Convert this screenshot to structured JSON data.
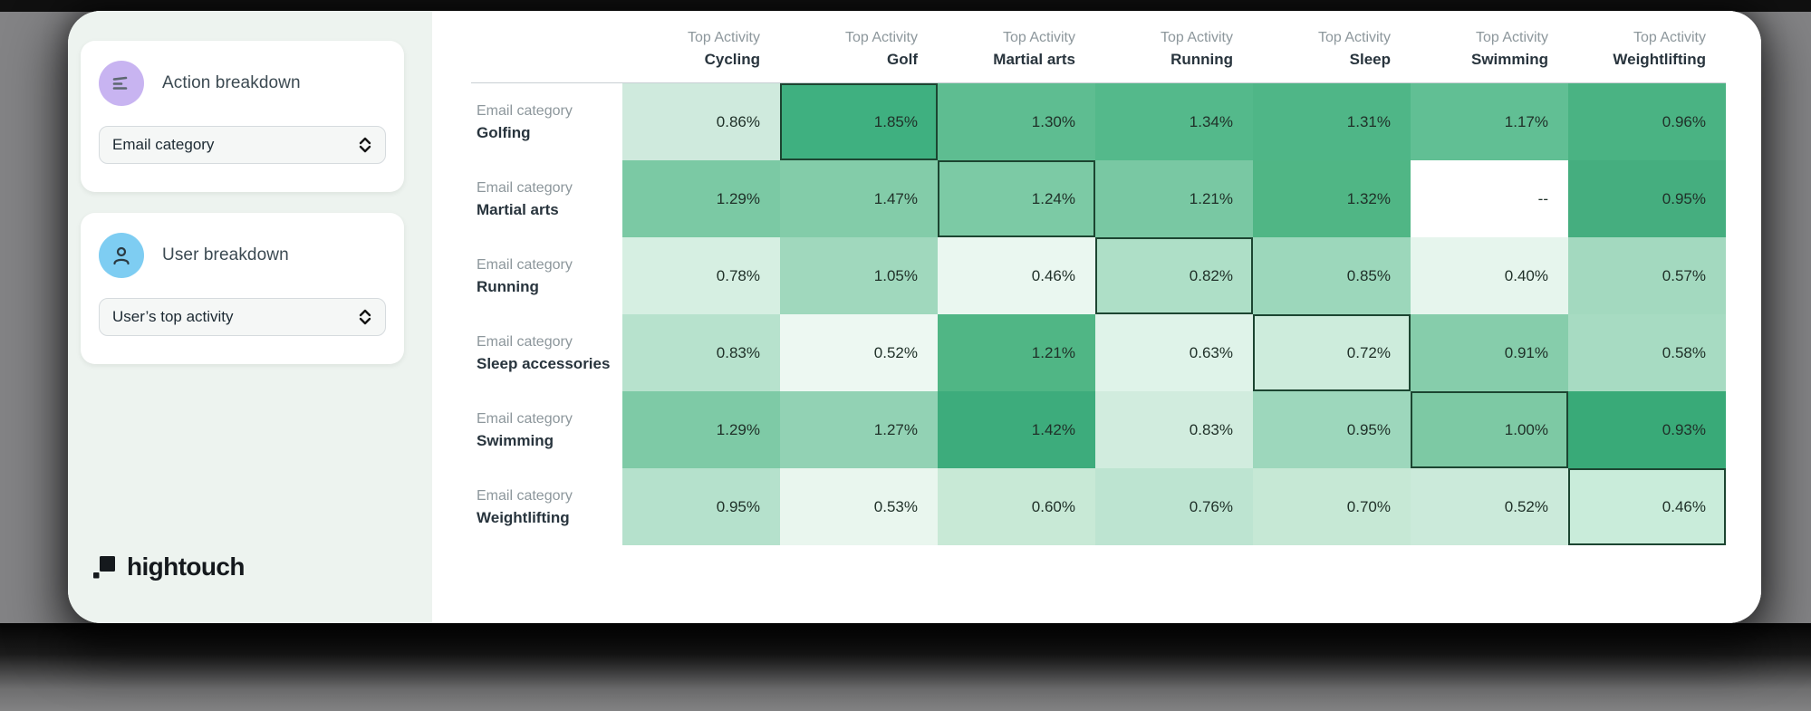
{
  "sidebar": {
    "action_card": {
      "title": "Action breakdown",
      "dropdown_value": "Email category"
    },
    "user_card": {
      "title": "User breakdown",
      "dropdown_value": "User’s top activity"
    },
    "logo_text": "hightouch"
  },
  "chart_data": {
    "type": "heatmap",
    "column_header_label": "Top Activity",
    "row_header_label": "Email category",
    "columns": [
      "Cycling",
      "Golf",
      "Martial arts",
      "Running",
      "Sleep",
      "Swimming",
      "Weightlifting"
    ],
    "rows": [
      "Golfing",
      "Martial arts",
      "Running",
      "Sleep accessories",
      "Swimming",
      "Weightlifting"
    ],
    "values_pct": [
      [
        0.86,
        1.85,
        1.3,
        1.34,
        1.31,
        1.17,
        0.96
      ],
      [
        1.29,
        1.47,
        1.24,
        1.21,
        1.32,
        null,
        0.95
      ],
      [
        0.78,
        1.05,
        0.46,
        0.82,
        0.85,
        0.4,
        0.57
      ],
      [
        0.83,
        0.52,
        1.21,
        0.63,
        0.72,
        0.91,
        0.58
      ],
      [
        1.29,
        1.27,
        1.42,
        0.83,
        0.95,
        1.0,
        0.93
      ],
      [
        0.95,
        0.53,
        0.6,
        0.76,
        0.7,
        0.52,
        0.46
      ]
    ],
    "missing_display": "--",
    "highlighted_cells": [
      [
        0,
        1
      ],
      [
        1,
        2
      ],
      [
        2,
        3
      ],
      [
        3,
        4
      ],
      [
        4,
        5
      ],
      [
        5,
        6
      ]
    ],
    "cell_colors": [
      [
        "#cfeadd",
        "#3fb080",
        "#5ebd91",
        "#54b98b",
        "#4fb687",
        "#61bf94",
        "#4ab383"
      ],
      [
        "#7bc9a4",
        "#83cca9",
        "#7ccaa5",
        "#79c8a3",
        "#50b685",
        "#ffffff",
        "#45ae7f"
      ],
      [
        "#d6efe2",
        "#a0d8bd",
        "#eaf7f0",
        "#aedfc7",
        "#9cd7bb",
        "#e6f5ed",
        "#a3d9bf"
      ],
      [
        "#b7e2cd",
        "#edf8f2",
        "#50b685",
        "#dff3e9",
        "#cdecdc",
        "#86cdab",
        "#a7dbc2"
      ],
      [
        "#7ecaa6",
        "#92d2b4",
        "#3dac7c",
        "#d1ecde",
        "#9dd7bc",
        "#7dc9a4",
        "#39aa78"
      ],
      [
        "#b5e1cc",
        "#e9f6ee",
        "#c8e9d6",
        "#bde4d1",
        "#c6e8d5",
        "#cbeada",
        "#c9ecda"
      ]
    ],
    "colors": {
      "max_green": "#3fb080",
      "highlight_border": "#1c4531"
    }
  }
}
